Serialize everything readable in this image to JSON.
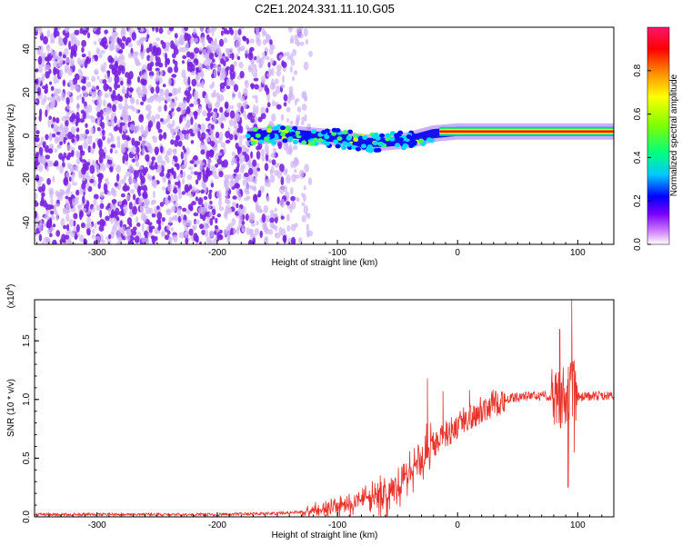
{
  "figure_title": "C2E1.2024.331.11.10.G05",
  "colors": {
    "snr_line": "#e8322a",
    "axis": "#000000",
    "spectro_noise": "#7a22e0",
    "spectro_noise_light": "#cfb3f7",
    "spectro_band": "#e23a1c"
  },
  "chart_data": [
    {
      "type": "heatmap",
      "title": "",
      "xlabel": "Height of straight line (km)",
      "ylabel": "Frequency (Hz)",
      "xlim": [
        -352,
        130
      ],
      "ylim": [
        -50,
        50
      ],
      "xticks": [
        -300,
        -200,
        -100,
        0,
        100
      ],
      "xtick_labels": [
        "-300",
        "-200",
        "-100",
        "0",
        "100"
      ],
      "yticks": [
        -40,
        -20,
        0,
        20,
        40
      ],
      "ytick_labels": [
        "-40",
        "-20",
        "0",
        "20",
        "40"
      ],
      "colorbar": {
        "label": "Normalized spectral amplitude",
        "range": [
          0,
          1
        ],
        "ticks": [
          0.0,
          0.2,
          0.4,
          0.6,
          0.8
        ],
        "tick_labels": [
          "0.0",
          "0.2",
          "0.4",
          "0.6",
          "0.8"
        ],
        "colormap": [
          "#ffffff",
          "#c040ff",
          "#5a00ff",
          "#0000ff",
          "#00e0ff",
          "#00ff60",
          "#a0ff00",
          "#ffff00",
          "#ff8000",
          "#ff0000",
          "#ff1070"
        ]
      },
      "signal_band": [
        {
          "x": -175,
          "freq": 0,
          "amp": 0.35
        },
        {
          "x": -160,
          "freq": 0,
          "amp": 0.3
        },
        {
          "x": -140,
          "freq": 1,
          "amp": 0.3
        },
        {
          "x": -120,
          "freq": 0,
          "amp": 0.35
        },
        {
          "x": -100,
          "freq": -1,
          "amp": 0.35
        },
        {
          "x": -80,
          "freq": -3,
          "amp": 0.4
        },
        {
          "x": -60,
          "freq": -3,
          "amp": 0.45
        },
        {
          "x": -40,
          "freq": -2,
          "amp": 0.5
        },
        {
          "x": -20,
          "freq": 1,
          "amp": 0.75
        },
        {
          "x": 0,
          "freq": 2,
          "amp": 0.95
        },
        {
          "x": 50,
          "freq": 2,
          "amp": 0.95
        },
        {
          "x": 90,
          "freq": 2,
          "amp": 0.9
        },
        {
          "x": 130,
          "freq": 2,
          "amp": 0.95
        }
      ]
    },
    {
      "type": "line",
      "title": "",
      "xlabel": "Height of straight line (km)",
      "ylabel": "SNR (10 * v/v)",
      "y_multiplier_label": "(x10",
      "y_multiplier_exp": "4",
      "y_multiplier_close": ")",
      "xlim": [
        -352,
        130
      ],
      "ylim": [
        0,
        1.85
      ],
      "xticks": [
        -300,
        -200,
        -100,
        0,
        100
      ],
      "xtick_labels": [
        "-300",
        "-200",
        "-100",
        "0",
        "100"
      ],
      "yticks": [
        0.0,
        0.5,
        1.0,
        1.5
      ],
      "ytick_labels": [
        "0.0",
        "0.5",
        "1.0",
        "1.5"
      ],
      "series": [
        {
          "x": [
            -352,
            -300,
            -250,
            -200,
            -150,
            -120,
            -100,
            -90,
            -80,
            -70,
            -60,
            -50,
            -40,
            -30,
            -20,
            -10,
            0,
            10,
            20,
            30,
            40,
            50,
            60,
            70,
            80,
            90,
            95,
            100,
            110,
            120,
            130
          ],
          "y": [
            0.02,
            0.02,
            0.02,
            0.02,
            0.03,
            0.05,
            0.09,
            0.12,
            0.15,
            0.16,
            0.18,
            0.24,
            0.38,
            0.5,
            0.6,
            0.7,
            0.78,
            0.85,
            0.92,
            0.97,
            1.0,
            1.02,
            1.03,
            1.03,
            1.03,
            1.03,
            1.1,
            1.02,
            1.03,
            1.03,
            1.03
          ]
        }
      ],
      "spikes": [
        {
          "x": -25,
          "y": 1.18
        },
        {
          "x": -12,
          "y": 1.07
        },
        {
          "x": 10,
          "y": 1.08
        },
        {
          "x": 85,
          "y": 1.6
        },
        {
          "x": 92,
          "y": 0.25
        },
        {
          "x": 95,
          "y": 1.85
        },
        {
          "x": 97,
          "y": 0.55
        }
      ]
    }
  ]
}
